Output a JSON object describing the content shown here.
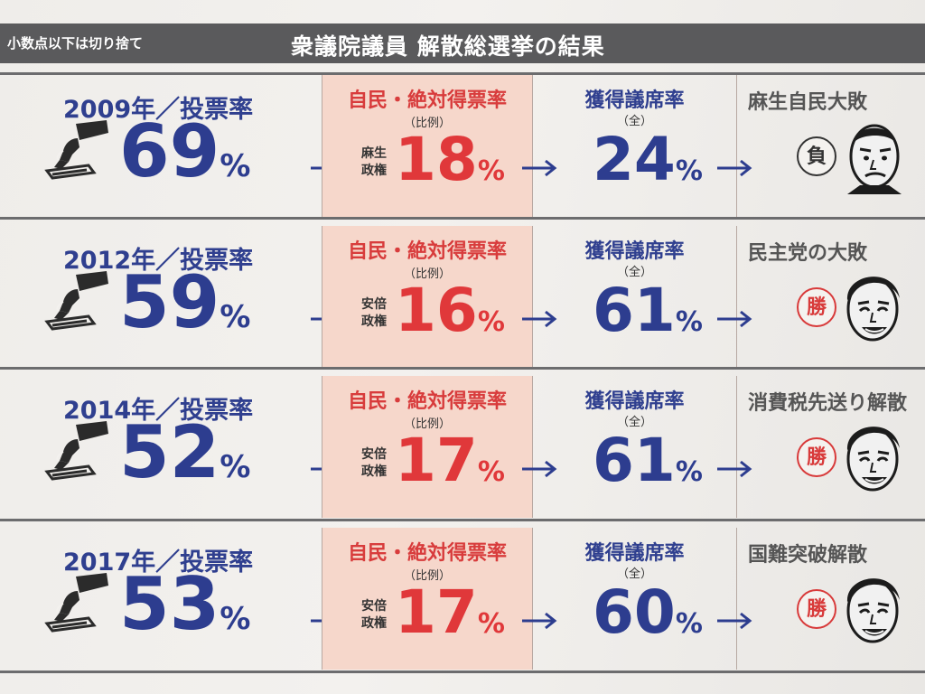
{
  "header": {
    "note": "小数点以下は切り捨て",
    "title": "衆議院議員 解散総選挙の結果"
  },
  "colors": {
    "header_bg": "#5a5a5c",
    "blue_text": "#2d3d8f",
    "red_text": "#e0383a",
    "ldp_panel": "#f6d7cb"
  },
  "rows": [
    {
      "vote_label": "2009年／投票率",
      "turnout": "69",
      "ldp_label": "自民・絶対得票率",
      "ldp_sub": "（比例）",
      "admin_line1": "麻生",
      "admin_line2": "政権",
      "ldp_rate": "18",
      "seat_label": "獲得議席率",
      "seat_sub": "（全）",
      "seat_rate": "24",
      "pct": "%",
      "result_label": "麻生自民大敗",
      "stamp": "負",
      "stamp_type": "lose",
      "face_icon": "aso-face-icon"
    },
    {
      "vote_label": "2012年／投票率",
      "turnout": "59",
      "ldp_label": "自民・絶対得票率",
      "ldp_sub": "（比例）",
      "admin_line1": "安倍",
      "admin_line2": "政権",
      "ldp_rate": "16",
      "seat_label": "獲得議席率",
      "seat_sub": "（全）",
      "seat_rate": "61",
      "pct": "%",
      "result_label": "民主党の大敗",
      "stamp": "勝",
      "stamp_type": "win",
      "face_icon": "abe-face-icon"
    },
    {
      "vote_label": "2014年／投票率",
      "turnout": "52",
      "ldp_label": "自民・絶対得票率",
      "ldp_sub": "（比例）",
      "admin_line1": "安倍",
      "admin_line2": "政権",
      "ldp_rate": "17",
      "seat_label": "獲得議席率",
      "seat_sub": "（全）",
      "seat_rate": "61",
      "pct": "%",
      "result_label": "消費税先送り解散",
      "stamp": "勝",
      "stamp_type": "win",
      "face_icon": "abe-face-icon"
    },
    {
      "vote_label": "2017年／投票率",
      "turnout": "53",
      "ldp_label": "自民・絶対得票率",
      "ldp_sub": "（比例）",
      "admin_line1": "安倍",
      "admin_line2": "政権",
      "ldp_rate": "17",
      "seat_label": "獲得議席率",
      "seat_sub": "（全）",
      "seat_rate": "60",
      "pct": "%",
      "result_label": "国難突破解散",
      "stamp": "勝",
      "stamp_type": "win",
      "face_icon": "abe-face-icon"
    }
  ]
}
